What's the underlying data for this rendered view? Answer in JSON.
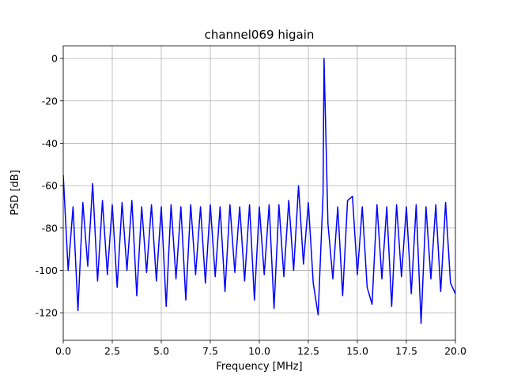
{
  "chart_data": {
    "type": "line",
    "title": "channel069 higain",
    "x_label": "Frequency [MHz]",
    "y_label": "PSD [dB]",
    "grid": true,
    "xlim": [
      0,
      20
    ],
    "ylim": [
      -133,
      6
    ],
    "xticks": [
      {
        "value": 0,
        "label": "0.0"
      },
      2.5,
      {
        "value": 5,
        "label": "5.0"
      },
      7.5,
      {
        "value": 10,
        "label": "10.0"
      },
      12.5,
      {
        "value": 15,
        "label": "15.0"
      },
      17.5,
      {
        "value": 20,
        "label": "20.0"
      }
    ],
    "yticks": [
      -120,
      -100,
      -80,
      -60,
      -40,
      -20,
      0
    ],
    "series": [
      {
        "color": "#0000ff",
        "x": [
          0,
          0.25,
          0.5,
          0.75,
          1,
          1.25,
          1.5,
          1.75,
          2,
          2.25,
          2.5,
          2.75,
          3,
          3.25,
          3.5,
          3.75,
          4,
          4.25,
          4.5,
          4.75,
          5,
          5.25,
          5.5,
          5.75,
          6,
          6.25,
          6.5,
          6.75,
          7,
          7.25,
          7.5,
          7.75,
          8,
          8.25,
          8.5,
          8.75,
          9,
          9.25,
          9.5,
          9.75,
          10,
          10.25,
          10.5,
          10.75,
          11,
          11.25,
          11.5,
          11.75,
          12,
          12.25,
          12.5,
          12.75,
          13,
          13.25,
          13.3,
          13.5,
          13.75,
          14,
          14.25,
          14.5,
          14.75,
          15,
          15.25,
          15.5,
          15.75,
          16,
          16.25,
          16.5,
          16.75,
          17,
          17.25,
          17.5,
          17.75,
          18,
          18.25,
          18.5,
          18.75,
          19,
          19.25,
          19.5,
          19.75,
          20
        ],
        "values": [
          -55,
          -100,
          -70,
          -119,
          -68,
          -98,
          -59,
          -105,
          -67,
          -102,
          -69,
          -108,
          -68,
          -100,
          -67,
          -112,
          -70,
          -101,
          -69,
          -105,
          -70,
          -117,
          -69,
          -104,
          -70,
          -114,
          -69,
          -102,
          -70,
          -106,
          -69,
          -103,
          -70,
          -110,
          -69,
          -101,
          -70,
          -105,
          -69,
          -114,
          -70,
          -102,
          -69,
          -118,
          -69,
          -103,
          -67,
          -100,
          -60,
          -97,
          -68,
          -106,
          -121,
          -64,
          0,
          -78,
          -104,
          -70,
          -112,
          -67,
          -65,
          -102,
          -70,
          -108,
          -116,
          -69,
          -104,
          -70,
          -117,
          -69,
          -103,
          -70,
          -111,
          -69,
          -125,
          -70,
          -104,
          -69,
          -110,
          -68,
          -106,
          -111
        ]
      }
    ]
  }
}
